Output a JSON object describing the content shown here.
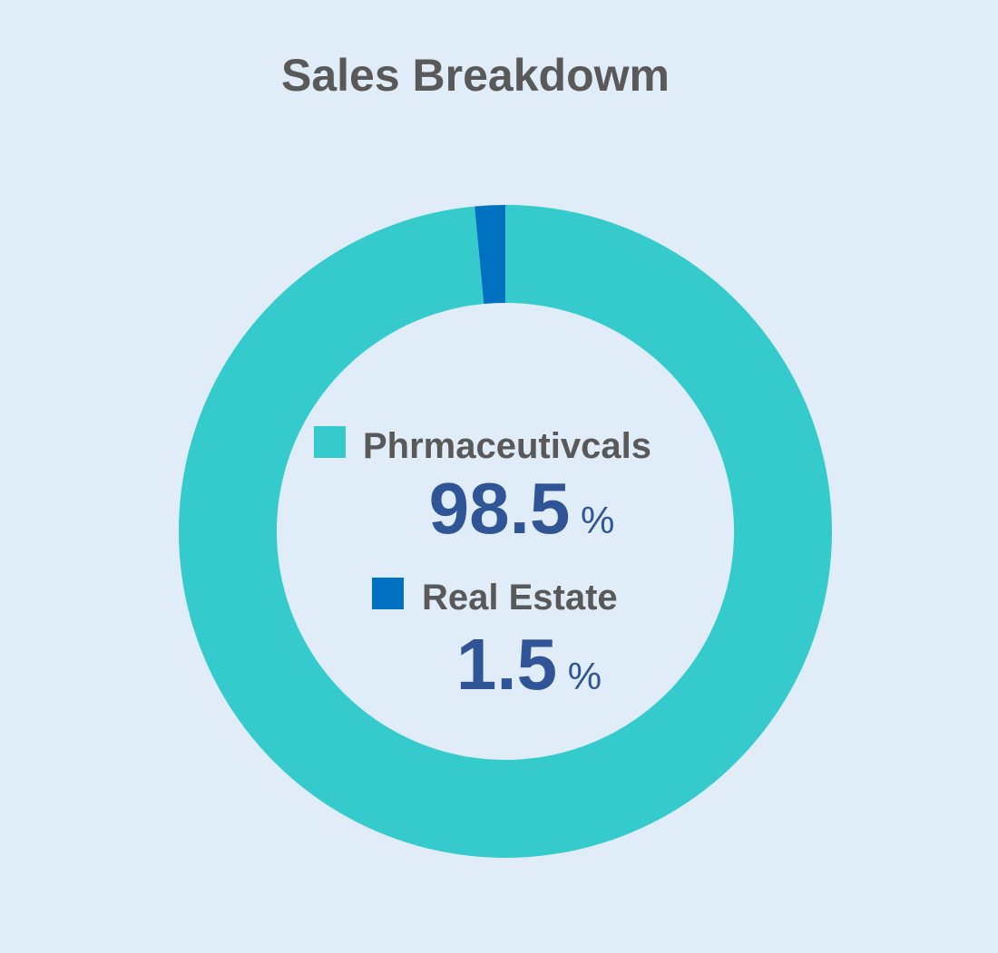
{
  "chart_data": {
    "type": "donut",
    "title": "Sales Breakdowm",
    "categories": [
      "Phrmaceutivcals",
      "Real Estate"
    ],
    "values": [
      98.5,
      1.5
    ],
    "value_labels": [
      "98.5 %",
      "1.5 %"
    ],
    "colors": [
      "#35cbcd",
      "#0070c0"
    ]
  }
}
